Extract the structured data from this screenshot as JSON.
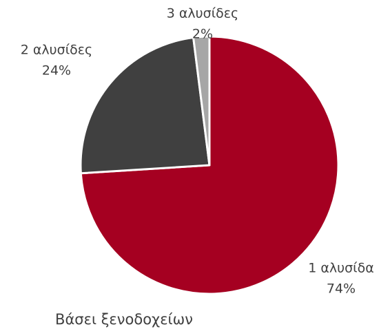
{
  "chart_data": {
    "type": "pie",
    "title": "Βάσει ξενοδοχείων",
    "categories": [
      "1 αλυσίδα",
      "2 αλυσίδες",
      "3 αλυσίδες"
    ],
    "values": [
      74,
      24,
      2
    ],
    "value_labels": [
      "74%",
      "24%",
      "2%"
    ],
    "colors": [
      "#a50021",
      "#404040",
      "#a6a6a6"
    ]
  }
}
